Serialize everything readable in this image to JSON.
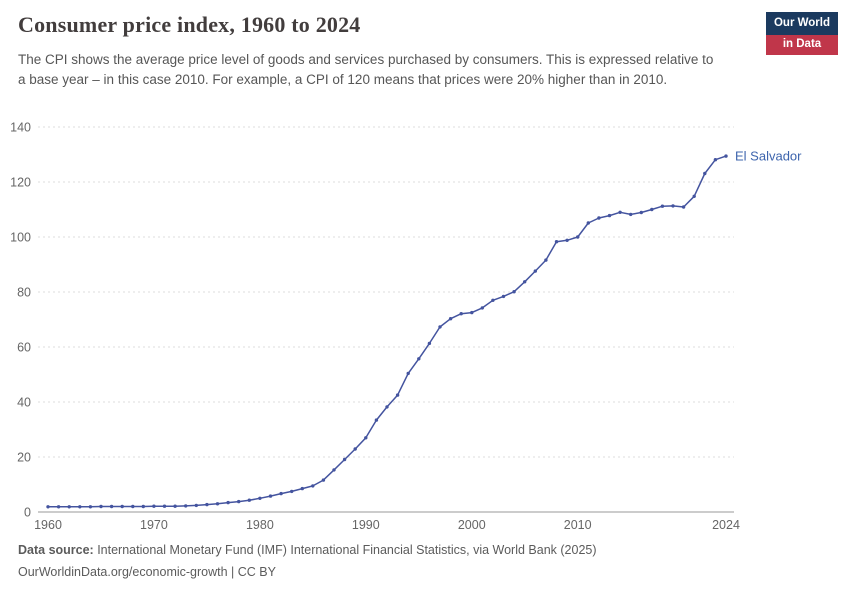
{
  "logo": {
    "line1": "Our World",
    "line2": "in Data",
    "navy": "#1b3a5f",
    "red": "#c0364a"
  },
  "header": {
    "title": "Consumer price index, 1960 to 2024",
    "subtitle": "The CPI shows the average price level of goods and services purchased by consumers. This is expressed relative to a base year – in this case 2010. For example, a CPI of 120 means that prices were 20% higher than in 2010."
  },
  "footer": {
    "source_label": "Data source:",
    "source_text": " International Monetary Fund (IMF) International Financial Statistics, via World Bank (2025)",
    "license_line": "OurWorldinData.org/economic-growth | CC BY"
  },
  "chart_data": {
    "type": "line",
    "title": "Consumer price index, 1960 to 2024",
    "xlabel": "",
    "ylabel": "",
    "xlim": [
      1960,
      2024
    ],
    "ylim": [
      0,
      140
    ],
    "x_ticks": [
      1960,
      1970,
      1980,
      1990,
      2000,
      2010,
      2024
    ],
    "y_ticks": [
      0,
      20,
      40,
      60,
      80,
      100,
      120,
      140
    ],
    "grid": "horizontal-dashed",
    "legend_position": "end-of-line-label",
    "colors": {
      "line": "#44549f",
      "entity_label": "#3d64ad",
      "grid": "#dcdcdc",
      "axis": "#9a9a9a",
      "tick_label": "#666666"
    },
    "series": [
      {
        "name": "El Salvador",
        "x": [
          1960,
          1961,
          1962,
          1963,
          1964,
          1965,
          1966,
          1967,
          1968,
          1969,
          1970,
          1971,
          1972,
          1973,
          1974,
          1975,
          1976,
          1977,
          1978,
          1979,
          1980,
          1981,
          1982,
          1983,
          1984,
          1985,
          1986,
          1987,
          1988,
          1989,
          1990,
          1991,
          1992,
          1993,
          1994,
          1995,
          1996,
          1997,
          1998,
          1999,
          2000,
          2001,
          2002,
          2003,
          2004,
          2005,
          2006,
          2007,
          2008,
          2009,
          2010,
          2011,
          2012,
          2013,
          2014,
          2015,
          2016,
          2017,
          2018,
          2019,
          2020,
          2021,
          2022,
          2023,
          2024
        ],
        "values": [
          1.9,
          1.9,
          1.9,
          1.9,
          1.9,
          2.0,
          2.0,
          2.0,
          2.0,
          2.0,
          2.1,
          2.1,
          2.1,
          2.2,
          2.4,
          2.7,
          3.0,
          3.4,
          3.8,
          4.3,
          5.0,
          5.8,
          6.7,
          7.5,
          8.5,
          9.5,
          11.6,
          15.3,
          19.1,
          22.9,
          27.0,
          33.4,
          38.2,
          42.5,
          50.4,
          55.7,
          61.3,
          67.3,
          70.3,
          72.1,
          72.5,
          74.2,
          77.0,
          78.4,
          80.1,
          83.7,
          87.6,
          91.6,
          98.3,
          98.8,
          100.0,
          105.1,
          106.9,
          107.8,
          109.0,
          108.2,
          108.9,
          110.0,
          111.2,
          111.3,
          110.9,
          114.8,
          123.1,
          128.1,
          129.4
        ]
      }
    ]
  }
}
